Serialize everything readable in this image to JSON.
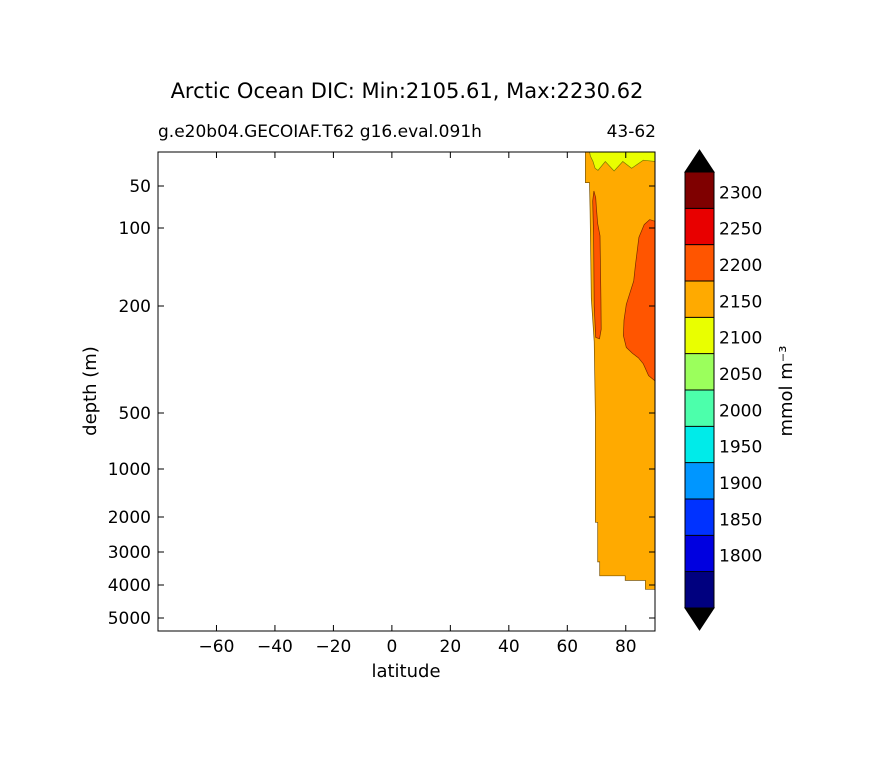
{
  "chart_data": {
    "type": "contour",
    "title": "Arctic Ocean DIC: Min:2105.61, Max:2230.62",
    "subtitle_left": "g.e20b04.GECOIAF.T62 g16.eval.091h",
    "subtitle_right": "43-62",
    "xlabel": "latitude",
    "ylabel": "depth (m)",
    "xlim": [
      -80,
      90
    ],
    "x_ticks": [
      -60,
      -40,
      -20,
      0,
      20,
      40,
      60,
      80
    ],
    "x_tick_labels": [
      "−60",
      "−40",
      "−20",
      "0",
      "20",
      "40",
      "60",
      "80"
    ],
    "y_scale": "custom (compressed deep levels)",
    "y_ticks": [
      50,
      100,
      200,
      500,
      1000,
      2000,
      3000,
      4000,
      5000
    ],
    "y_tick_labels": [
      "50",
      "100",
      "200",
      "500",
      "1000",
      "2000",
      "3000",
      "4000",
      "5000"
    ],
    "y_inverted": true,
    "colorbar": {
      "label": "mmol m⁻³",
      "levels": [
        1800,
        1850,
        1900,
        1950,
        2000,
        2050,
        2100,
        2150,
        2200,
        2250,
        2300
      ],
      "level_labels": [
        "1800",
        "1850",
        "1900",
        "1950",
        "2000",
        "2050",
        "2100",
        "2150",
        "2200",
        "2250",
        "2300"
      ],
      "colors": [
        "#00007f",
        "#0000e0",
        "#0032ff",
        "#0096ff",
        "#00ebe9",
        "#4cffab",
        "#9bff5c",
        "#e9ff00",
        "#ffaa00",
        "#ff5500",
        "#e80000",
        "#7f0000"
      ],
      "extend": "both",
      "extend_color": "#000000"
    },
    "regions": [
      {
        "band": "2100-2150",
        "color": "#e9ff00",
        "extent": "surface, ~66-90N, 0-~40 m"
      },
      {
        "band": "2150-2200",
        "color": "#ffaa00",
        "extent": "bulk of Arctic section ~66-90N, surface to ~4100 m"
      },
      {
        "band": "2200-2250",
        "color": "#ff5500",
        "extent": "narrow column near 68-72N, ~60-290 m"
      },
      {
        "band": "2200-2250",
        "color": "#ff5500",
        "extent": "lobe near 78-90N, ~90-400 m"
      }
    ]
  }
}
